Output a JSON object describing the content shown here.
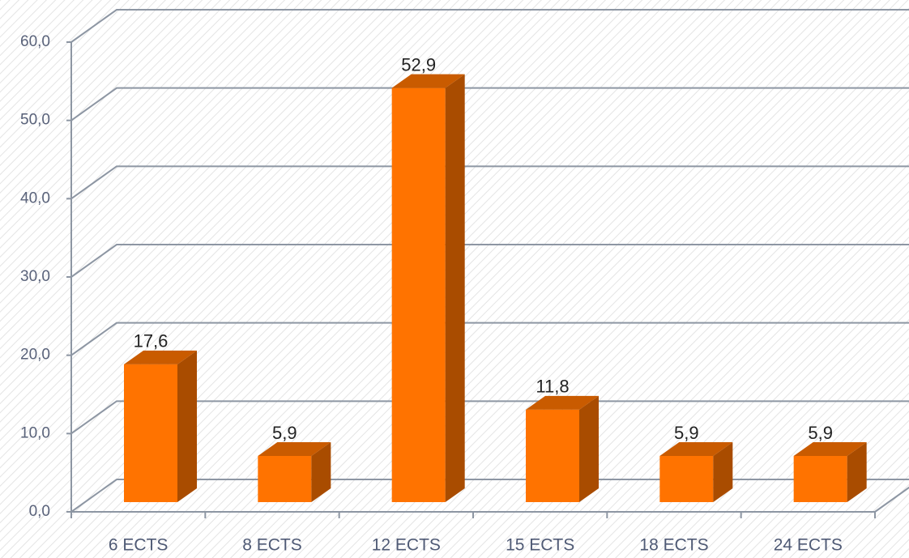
{
  "chart_data": {
    "type": "bar3d",
    "categories": [
      "6 ECTS",
      "8 ECTS",
      "12 ECTS",
      "15 ECTS",
      "18 ECTS",
      "24 ECTS"
    ],
    "values": [
      17.6,
      5.9,
      52.9,
      11.8,
      5.9,
      5.9
    ],
    "value_labels": [
      "17,6",
      "5,9",
      "52,9",
      "11,8",
      "5,9",
      "5,9"
    ],
    "color": "#ff7300",
    "ylim": [
      0,
      60
    ],
    "yticks": [
      {
        "value": 0,
        "label": "0,0"
      },
      {
        "value": 10,
        "label": "10,0"
      },
      {
        "value": 20,
        "label": "20,0"
      },
      {
        "value": 30,
        "label": "30,0"
      },
      {
        "value": 40,
        "label": "40,0"
      },
      {
        "value": 50,
        "label": "50,0"
      },
      {
        "value": 60,
        "label": "60,0"
      }
    ],
    "grid": true
  }
}
